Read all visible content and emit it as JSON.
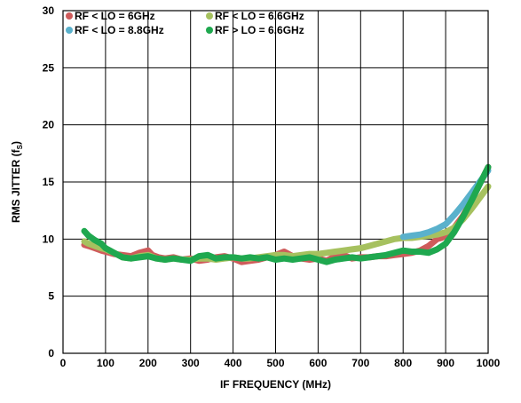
{
  "chart_data": {
    "type": "line",
    "title": "",
    "xlabel": "IF FREQUENCY (MHz)",
    "ylabel_main": "RMS JITTER (f",
    "ylabel_sub": "S",
    "ylabel_close": ")",
    "xlim": [
      0,
      1000
    ],
    "ylim": [
      0,
      30
    ],
    "x_ticks": [
      "0",
      "100",
      "200",
      "300",
      "400",
      "500",
      "600",
      "700",
      "800",
      "900",
      "1000"
    ],
    "y_ticks": [
      "0",
      "5",
      "10",
      "15",
      "20",
      "25",
      "30"
    ],
    "grid": true,
    "legend_position": "top-left",
    "series": [
      {
        "name": "RF < LO = 6GHz",
        "color": "#cf5b5b",
        "x": [
          50,
          60,
          75,
          90,
          100,
          120,
          140,
          160,
          180,
          200,
          210,
          225,
          240,
          260,
          280,
          300,
          320,
          340,
          360,
          380,
          400,
          420,
          440,
          460,
          480,
          500,
          520,
          540,
          560,
          580,
          600,
          620,
          640,
          660,
          680,
          700,
          720,
          740,
          760,
          780,
          800,
          820,
          840,
          860,
          870,
          880,
          890,
          900,
          920,
          940,
          960,
          980,
          1000
        ],
        "y": [
          9.5,
          9.4,
          9.2,
          9.0,
          8.9,
          8.7,
          8.6,
          8.5,
          8.8,
          9.0,
          8.6,
          8.4,
          8.3,
          8.4,
          8.2,
          8.3,
          8.1,
          8.2,
          8.4,
          8.5,
          8.3,
          8.0,
          8.1,
          8.2,
          8.4,
          8.6,
          8.9,
          8.5,
          8.3,
          8.2,
          8.3,
          8.1,
          8.5,
          8.6,
          8.3,
          8.4,
          8.4,
          8.5,
          8.5,
          8.6,
          8.7,
          8.8,
          9.0,
          9.4,
          9.7,
          10.0,
          10.1,
          10.3,
          11.0,
          12.0,
          13.3,
          14.8,
          16.3
        ]
      },
      {
        "name": "RF < LO = 6.6GHz",
        "color": "#a6c15f",
        "x": [
          50,
          60,
          75,
          90,
          100,
          120,
          140,
          160,
          180,
          200,
          220,
          240,
          260,
          280,
          300,
          320,
          340,
          360,
          380,
          400,
          420,
          440,
          460,
          480,
          500,
          520,
          540,
          560,
          580,
          600,
          620,
          640,
          660,
          680,
          700,
          720,
          740,
          760,
          780,
          800,
          820,
          840,
          860,
          880,
          900,
          920,
          940,
          960,
          980,
          1000
        ],
        "y": [
          9.8,
          9.6,
          9.4,
          9.2,
          9.1,
          8.8,
          8.4,
          8.3,
          8.5,
          8.6,
          8.3,
          8.2,
          8.3,
          8.2,
          8.2,
          8.3,
          8.3,
          8.2,
          8.3,
          8.4,
          8.3,
          8.3,
          8.4,
          8.5,
          8.6,
          8.6,
          8.5,
          8.6,
          8.7,
          8.7,
          8.8,
          8.9,
          9.0,
          9.1,
          9.2,
          9.4,
          9.6,
          9.8,
          10.0,
          10.1,
          10.1,
          10.2,
          10.3,
          10.4,
          10.6,
          11.0,
          11.7,
          12.6,
          13.6,
          14.6
        ]
      },
      {
        "name": "RF < LO = 8.8GHz",
        "color": "#5ab1cc",
        "x": [
          800,
          820,
          840,
          860,
          880,
          900,
          920,
          940,
          960,
          980,
          1000
        ],
        "y": [
          10.2,
          10.3,
          10.4,
          10.6,
          10.9,
          11.3,
          12.1,
          13.0,
          14.0,
          15.0,
          16.0
        ]
      },
      {
        "name": "RF > LO = 6.6GHz",
        "color": "#1fa84f",
        "x": [
          50,
          60,
          75,
          90,
          100,
          120,
          140,
          160,
          180,
          200,
          220,
          240,
          260,
          280,
          300,
          320,
          340,
          360,
          380,
          400,
          420,
          440,
          460,
          480,
          500,
          520,
          540,
          560,
          580,
          600,
          620,
          640,
          660,
          680,
          700,
          720,
          740,
          760,
          780,
          800,
          820,
          840,
          860,
          880,
          900,
          920,
          940,
          960,
          980,
          1000
        ],
        "y": [
          10.7,
          10.3,
          9.9,
          9.6,
          9.2,
          8.8,
          8.4,
          8.3,
          8.4,
          8.5,
          8.3,
          8.2,
          8.3,
          8.2,
          8.1,
          8.5,
          8.6,
          8.3,
          8.4,
          8.4,
          8.3,
          8.4,
          8.3,
          8.4,
          8.2,
          8.3,
          8.2,
          8.3,
          8.4,
          8.2,
          8.0,
          8.2,
          8.3,
          8.4,
          8.3,
          8.4,
          8.5,
          8.6,
          8.8,
          9.0,
          8.9,
          8.9,
          8.8,
          9.1,
          9.6,
          10.6,
          11.9,
          13.3,
          14.8,
          16.3
        ]
      }
    ]
  }
}
